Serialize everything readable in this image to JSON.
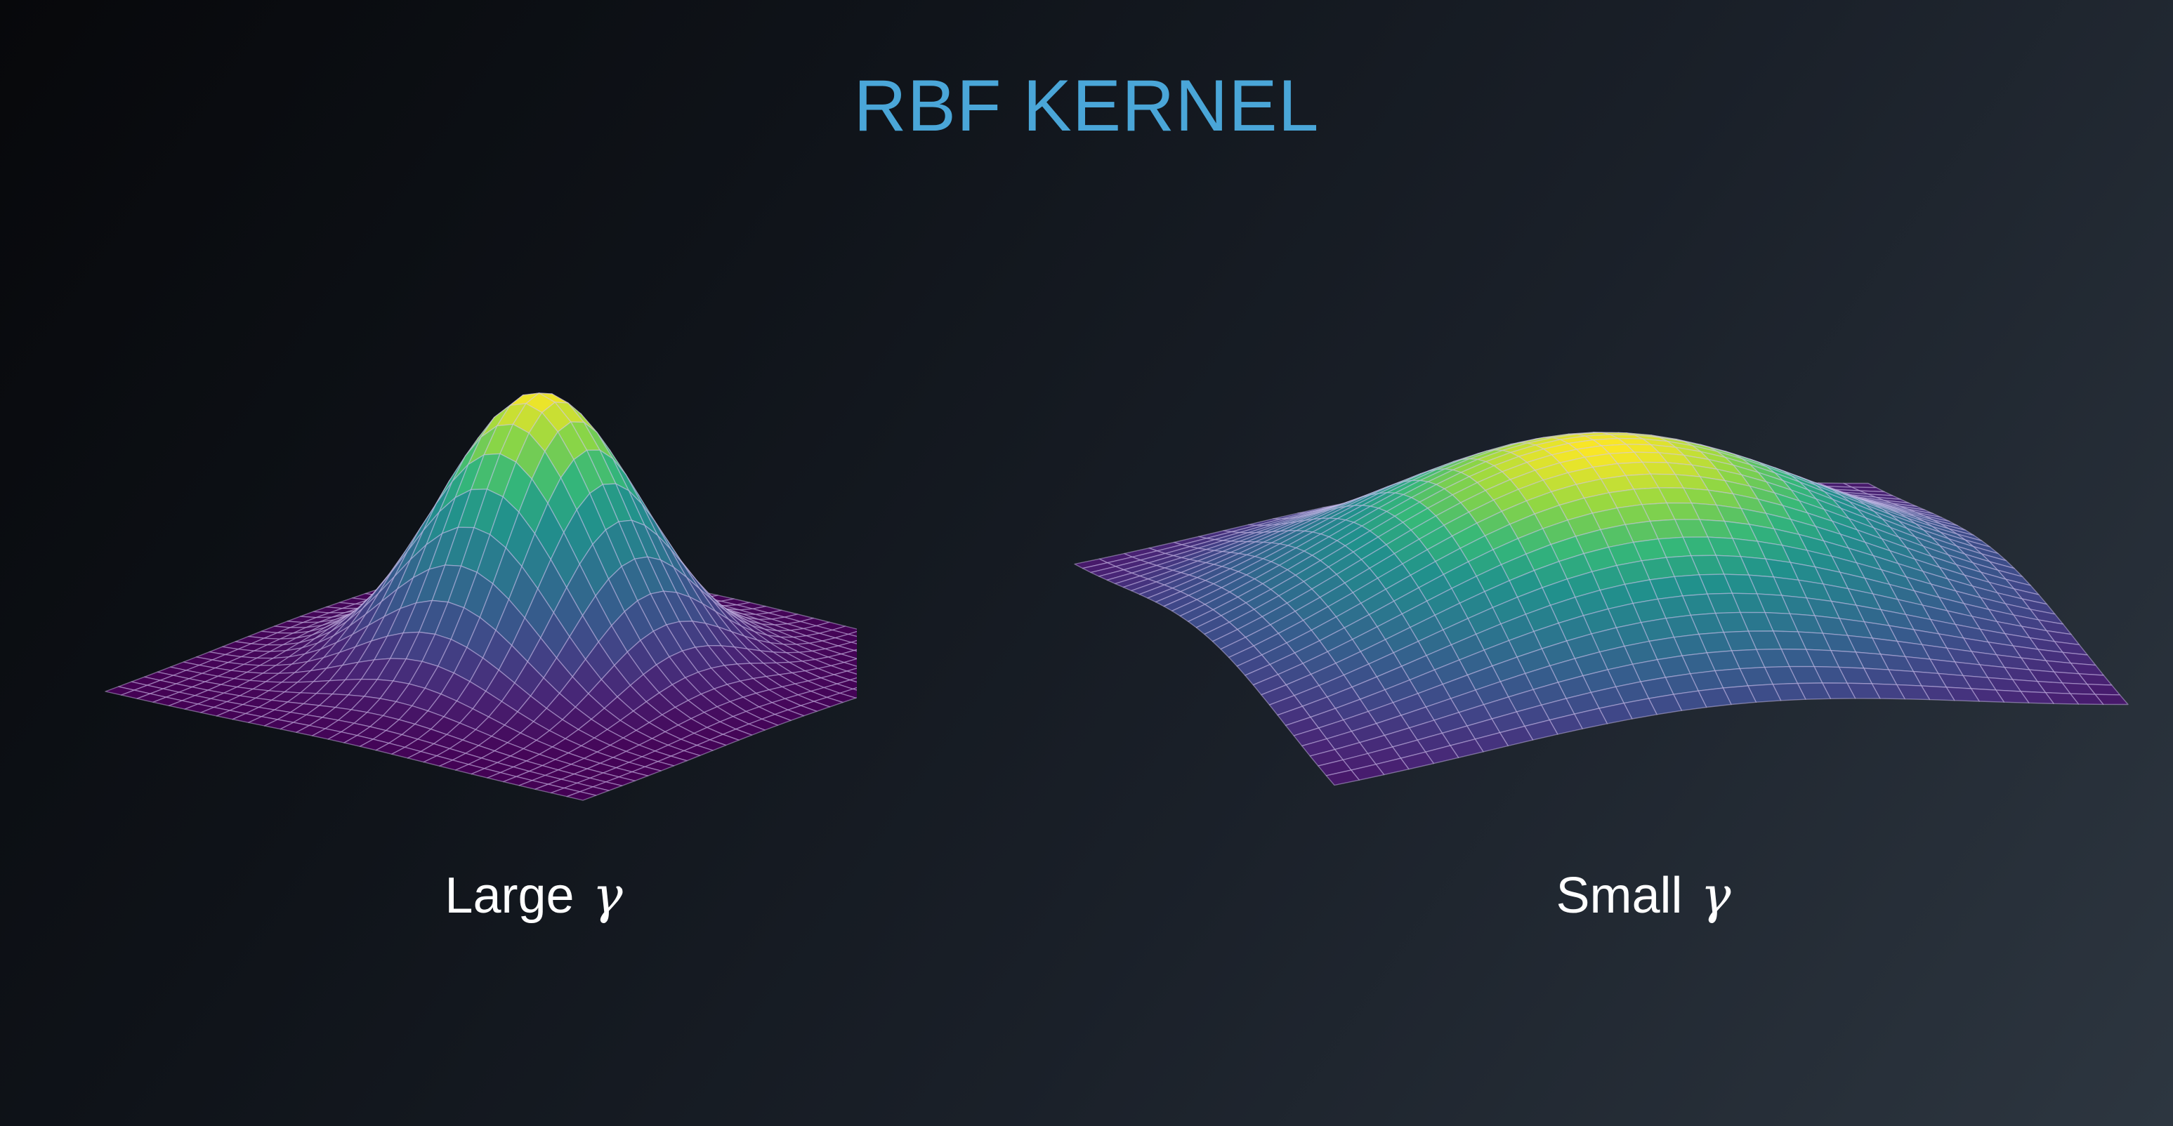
{
  "title": "RBF KERNEL",
  "colors": {
    "title": "#4aa6d8",
    "caption": "#ffffff",
    "mesh_line": "rgba(215,200,245,0.45)",
    "colormap": "viridis"
  },
  "panels": [
    {
      "id": "large-gamma",
      "caption_label": "Large",
      "caption_symbol": "γ",
      "gamma": "large"
    },
    {
      "id": "small-gamma",
      "caption_label": "Small",
      "caption_symbol": "γ",
      "gamma": "small"
    }
  ]
}
